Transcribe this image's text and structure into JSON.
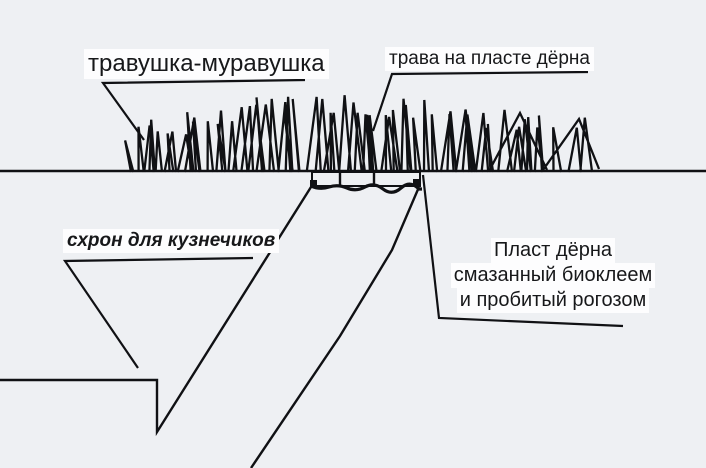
{
  "canvas": {
    "background": "#eef0f3",
    "ink": "#101114",
    "label_background": "#fdfdfe"
  },
  "labels": {
    "grass_common": "травушка-муравушка",
    "grass_on_sod": "трава на пласте дёрна",
    "stash": "схрон для кузнечиков",
    "sod_plate_lines": [
      "Пласт дёрна",
      "смазанный биоклеем",
      "и пробитый рогозом"
    ]
  }
}
